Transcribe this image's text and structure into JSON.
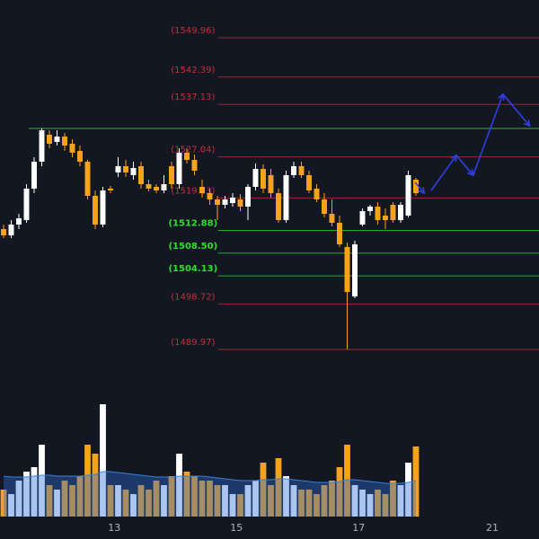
{
  "chart_data": {
    "type": "candlestick",
    "xlim": [
      -0.47,
      70.12
    ],
    "ylim": [
      1481.15,
      1557.22
    ],
    "xticks": [
      {
        "value": 14.5,
        "label": "13"
      },
      {
        "value": 30.5,
        "label": "15"
      },
      {
        "value": 46.5,
        "label": "17"
      },
      {
        "value": 64,
        "label": "21"
      }
    ],
    "up_color": "#ffffff",
    "down_color": "#f7a21b",
    "open": [
      1513.14,
      1511.93,
      1514.0,
      1514.86,
      1520.92,
      1526.1,
      1531.29,
      1529.9,
      1530.94,
      1529.56,
      1528.18,
      1526.1,
      1519.53,
      1514.0,
      1520.92,
      1524.03,
      1525.24,
      1523.51,
      1525.24,
      1521.78,
      1521.26,
      1520.57,
      1525.24,
      1521.78,
      1527.83,
      1526.45,
      1521.26,
      1520.05,
      1518.84,
      1517.8,
      1518.15,
      1518.84,
      1517.46,
      1521.26,
      1524.72,
      1523.51,
      1520.05,
      1514.86,
      1523.51,
      1525.24,
      1523.51,
      1520.92,
      1518.84,
      1516.07,
      1514.35,
      1509.68,
      1500.17,
      1514.0,
      1516.59,
      1517.46,
      1515.73,
      1517.8,
      1514.86,
      1515.73,
      1522.64
    ],
    "high": [
      1514.0,
      1514.86,
      1516.07,
      1521.78,
      1526.97,
      1532.5,
      1532.15,
      1532.15,
      1531.63,
      1530.42,
      1529.21,
      1526.45,
      1520.57,
      1521.26,
      1521.43,
      1526.97,
      1526.45,
      1526.1,
      1526.1,
      1522.64,
      1521.78,
      1523.51,
      1526.1,
      1528.69,
      1528.69,
      1527.48,
      1522.64,
      1520.92,
      1519.53,
      1519.53,
      1520.05,
      1519.88,
      1521.78,
      1525.76,
      1525.58,
      1524.72,
      1520.92,
      1524.37,
      1526.1,
      1526.1,
      1524.37,
      1521.78,
      1520.05,
      1518.84,
      1515.73,
      1510.54,
      1510.89,
      1517.11,
      1517.8,
      1518.32,
      1517.11,
      1518.32,
      1518.32,
      1524.37,
      1522.99
    ],
    "low": [
      1511.41,
      1511.41,
      1513.14,
      1514.35,
      1520.05,
      1525.24,
      1528.69,
      1529.21,
      1528.18,
      1526.97,
      1525.24,
      1518.84,
      1513.14,
      1513.48,
      1520.05,
      1523.16,
      1523.16,
      1522.64,
      1520.92,
      1520.4,
      1520.05,
      1520.05,
      1520.92,
      1520.92,
      1525.76,
      1523.51,
      1519.19,
      1517.8,
      1514.86,
      1517.11,
      1517.46,
      1516.59,
      1514.86,
      1520.57,
      1520.05,
      1519.19,
      1514.35,
      1514.35,
      1522.99,
      1522.99,
      1520.05,
      1518.32,
      1515.38,
      1513.65,
      1509.68,
      1489.97,
      1499.82,
      1513.65,
      1515.73,
      1514.0,
      1513.14,
      1514.35,
      1514.35,
      1515.38,
      1519.53
    ],
    "close": [
      1511.93,
      1514.0,
      1515.21,
      1520.92,
      1526.1,
      1532.15,
      1529.56,
      1530.94,
      1529.21,
      1527.83,
      1526.1,
      1519.53,
      1514.0,
      1520.57,
      1520.57,
      1525.24,
      1524.03,
      1524.89,
      1521.78,
      1520.92,
      1520.57,
      1521.78,
      1521.78,
      1527.83,
      1526.45,
      1524.37,
      1520.05,
      1518.84,
      1517.8,
      1518.84,
      1519.19,
      1517.46,
      1521.26,
      1524.72,
      1520.92,
      1520.05,
      1514.86,
      1523.51,
      1525.24,
      1523.51,
      1520.57,
      1518.84,
      1516.07,
      1514.35,
      1510.2,
      1501.03,
      1510.2,
      1516.59,
      1517.46,
      1514.86,
      1514.86,
      1514.86,
      1517.8,
      1523.51,
      1520.05
    ],
    "volume": [
      30,
      25,
      40,
      50,
      55,
      80,
      35,
      30,
      40,
      35,
      45,
      80,
      70,
      125,
      35,
      35,
      30,
      25,
      35,
      30,
      40,
      35,
      45,
      70,
      50,
      45,
      40,
      40,
      35,
      35,
      25,
      25,
      35,
      40,
      60,
      35,
      65,
      45,
      35,
      30,
      30,
      25,
      35,
      40,
      55,
      80,
      35,
      30,
      25,
      30,
      25,
      40,
      35,
      60,
      78
    ],
    "volume_ma": [
      45,
      44,
      44,
      44,
      45,
      46,
      46,
      45,
      45,
      45,
      45,
      46,
      47,
      50,
      50,
      49,
      48,
      47,
      46,
      45,
      44,
      44,
      44,
      45,
      45,
      45,
      45,
      44,
      43,
      42,
      41,
      40,
      40,
      40,
      41,
      41,
      42,
      42,
      41,
      40,
      39,
      38,
      38,
      38,
      39,
      41,
      41,
      40,
      39,
      38,
      37,
      37,
      37,
      38,
      40
    ],
    "volume_ylim": [
      0,
      130
    ],
    "levels_from": 28.1,
    "levels": [
      {
        "value": 1549.96,
        "label": "(1549.96)",
        "color": "#c2303a"
      },
      {
        "value": 1542.39,
        "label": "(1542.39)",
        "color": "#c2303a"
      },
      {
        "value": 1537.13,
        "label": "(1537.13)",
        "color": "#c2303a"
      },
      {
        "value": 1527.04,
        "label": "(1527.04)",
        "color": "#c2303a"
      },
      {
        "value": 1519.13,
        "label": "(1519.13)",
        "color": "#c2303a"
      },
      {
        "value": 1512.88,
        "label": "(1512.88)",
        "color": "#2ee02e"
      },
      {
        "value": 1508.5,
        "label": "(1508.50)",
        "color": "#2ee02e"
      },
      {
        "value": 1504.13,
        "label": "(1504.13)",
        "color": "#2ee02e"
      },
      {
        "value": 1498.72,
        "label": "(1498.72)",
        "color": "#c2303a"
      },
      {
        "value": 1489.97,
        "label": "(1489.97)",
        "color": "#c2303a"
      }
    ],
    "hlines": [
      {
        "value": 1532.5,
        "from": 3.3,
        "color": "#3fae3f"
      }
    ],
    "projections": [
      {
        "x": [
          53.9,
          55.1
        ],
        "y": [
          1522.1,
          1520.05
        ]
      },
      {
        "x": [
          56.0,
          59.3,
          61.5,
          65.4,
          68.9
        ],
        "y": [
          1520.57,
          1527.3,
          1523.5,
          1539.1,
          1533.0
        ]
      }
    ],
    "projection_color": "#2f3fe0"
  }
}
